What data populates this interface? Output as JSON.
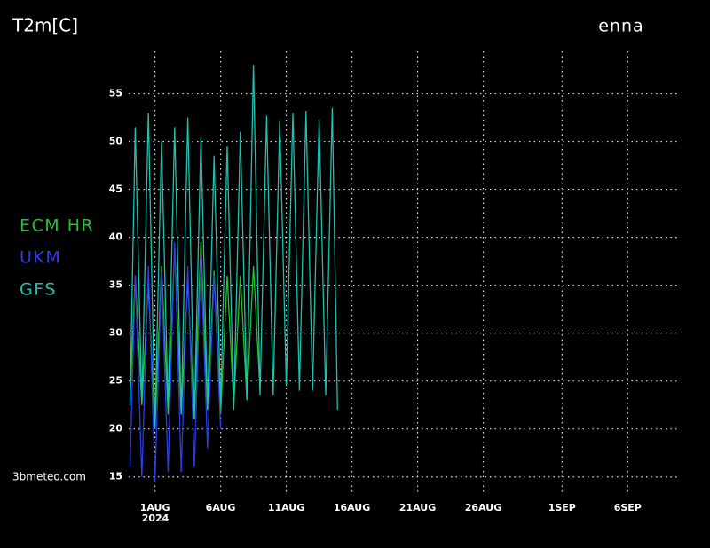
{
  "chart_data": {
    "type": "line",
    "title": "T2m[C]",
    "location": "enna",
    "source": "3bmeteo.com",
    "year_label": "2024",
    "grid": true,
    "ylim": [
      13.4,
      59.4
    ],
    "yticks": [
      15,
      20,
      25,
      30,
      35,
      40,
      45,
      50,
      55
    ],
    "xlim": [
      -2,
      39.9
    ],
    "xticks": [
      {
        "value": 0,
        "label": "1AUG"
      },
      {
        "value": 5,
        "label": "6AUG"
      },
      {
        "value": 10,
        "label": "11AUG"
      },
      {
        "value": 15,
        "label": "16AUG"
      },
      {
        "value": 20,
        "label": "21AUG"
      },
      {
        "value": 25,
        "label": "26AUG"
      },
      {
        "value": 31,
        "label": "1SEP"
      },
      {
        "value": 36,
        "label": "6SEP"
      }
    ],
    "series": [
      {
        "name": "ECM HR",
        "color": "#22c42a",
        "x": [
          -1.9,
          -1.5,
          -1,
          -0.5,
          0,
          0.5,
          1,
          1.5,
          2,
          2.5,
          3,
          3.5,
          4,
          4.5,
          5,
          5.5,
          6,
          6.5,
          7,
          7.5,
          8
        ],
        "values": [
          23,
          36,
          22.5,
          35,
          20,
          37,
          21.5,
          39,
          21.5,
          35.5,
          21,
          39.5,
          22,
          36.5,
          21.5,
          36,
          22.5,
          36,
          23,
          37,
          24
        ]
      },
      {
        "name": "UKM",
        "color": "#2a3ee8",
        "x": [
          -1.9,
          -1.5,
          -1,
          -0.5,
          0,
          0.5,
          1,
          1.5,
          2,
          2.5,
          3,
          3.5,
          4,
          4.5,
          5
        ],
        "values": [
          16,
          36,
          15,
          37,
          14.5,
          36.5,
          15.5,
          39.5,
          15.5,
          37,
          16,
          38,
          18,
          36,
          20
        ]
      },
      {
        "name": "GFS",
        "color": "#20c0b0",
        "x": [
          -1.9,
          -1.5,
          -1,
          -0.5,
          0,
          0.5,
          1,
          1.5,
          2,
          2.5,
          3,
          3.5,
          4,
          4.5,
          5,
          5.5,
          6,
          6.5,
          7,
          7.5,
          8,
          8.5,
          9,
          9.5,
          10,
          10.5,
          11,
          11.5,
          12,
          12.5,
          13,
          13.5,
          13.9
        ],
        "values": [
          22.5,
          51.5,
          22.5,
          53,
          20,
          50,
          22,
          51.5,
          21.5,
          52.5,
          21,
          50.5,
          22,
          48.5,
          22.5,
          49.5,
          22,
          51,
          23,
          58,
          23.5,
          52.7,
          23.5,
          52.2,
          24.5,
          53,
          24,
          53.2,
          24,
          52.3,
          23.5,
          53.5,
          22
        ]
      }
    ]
  }
}
